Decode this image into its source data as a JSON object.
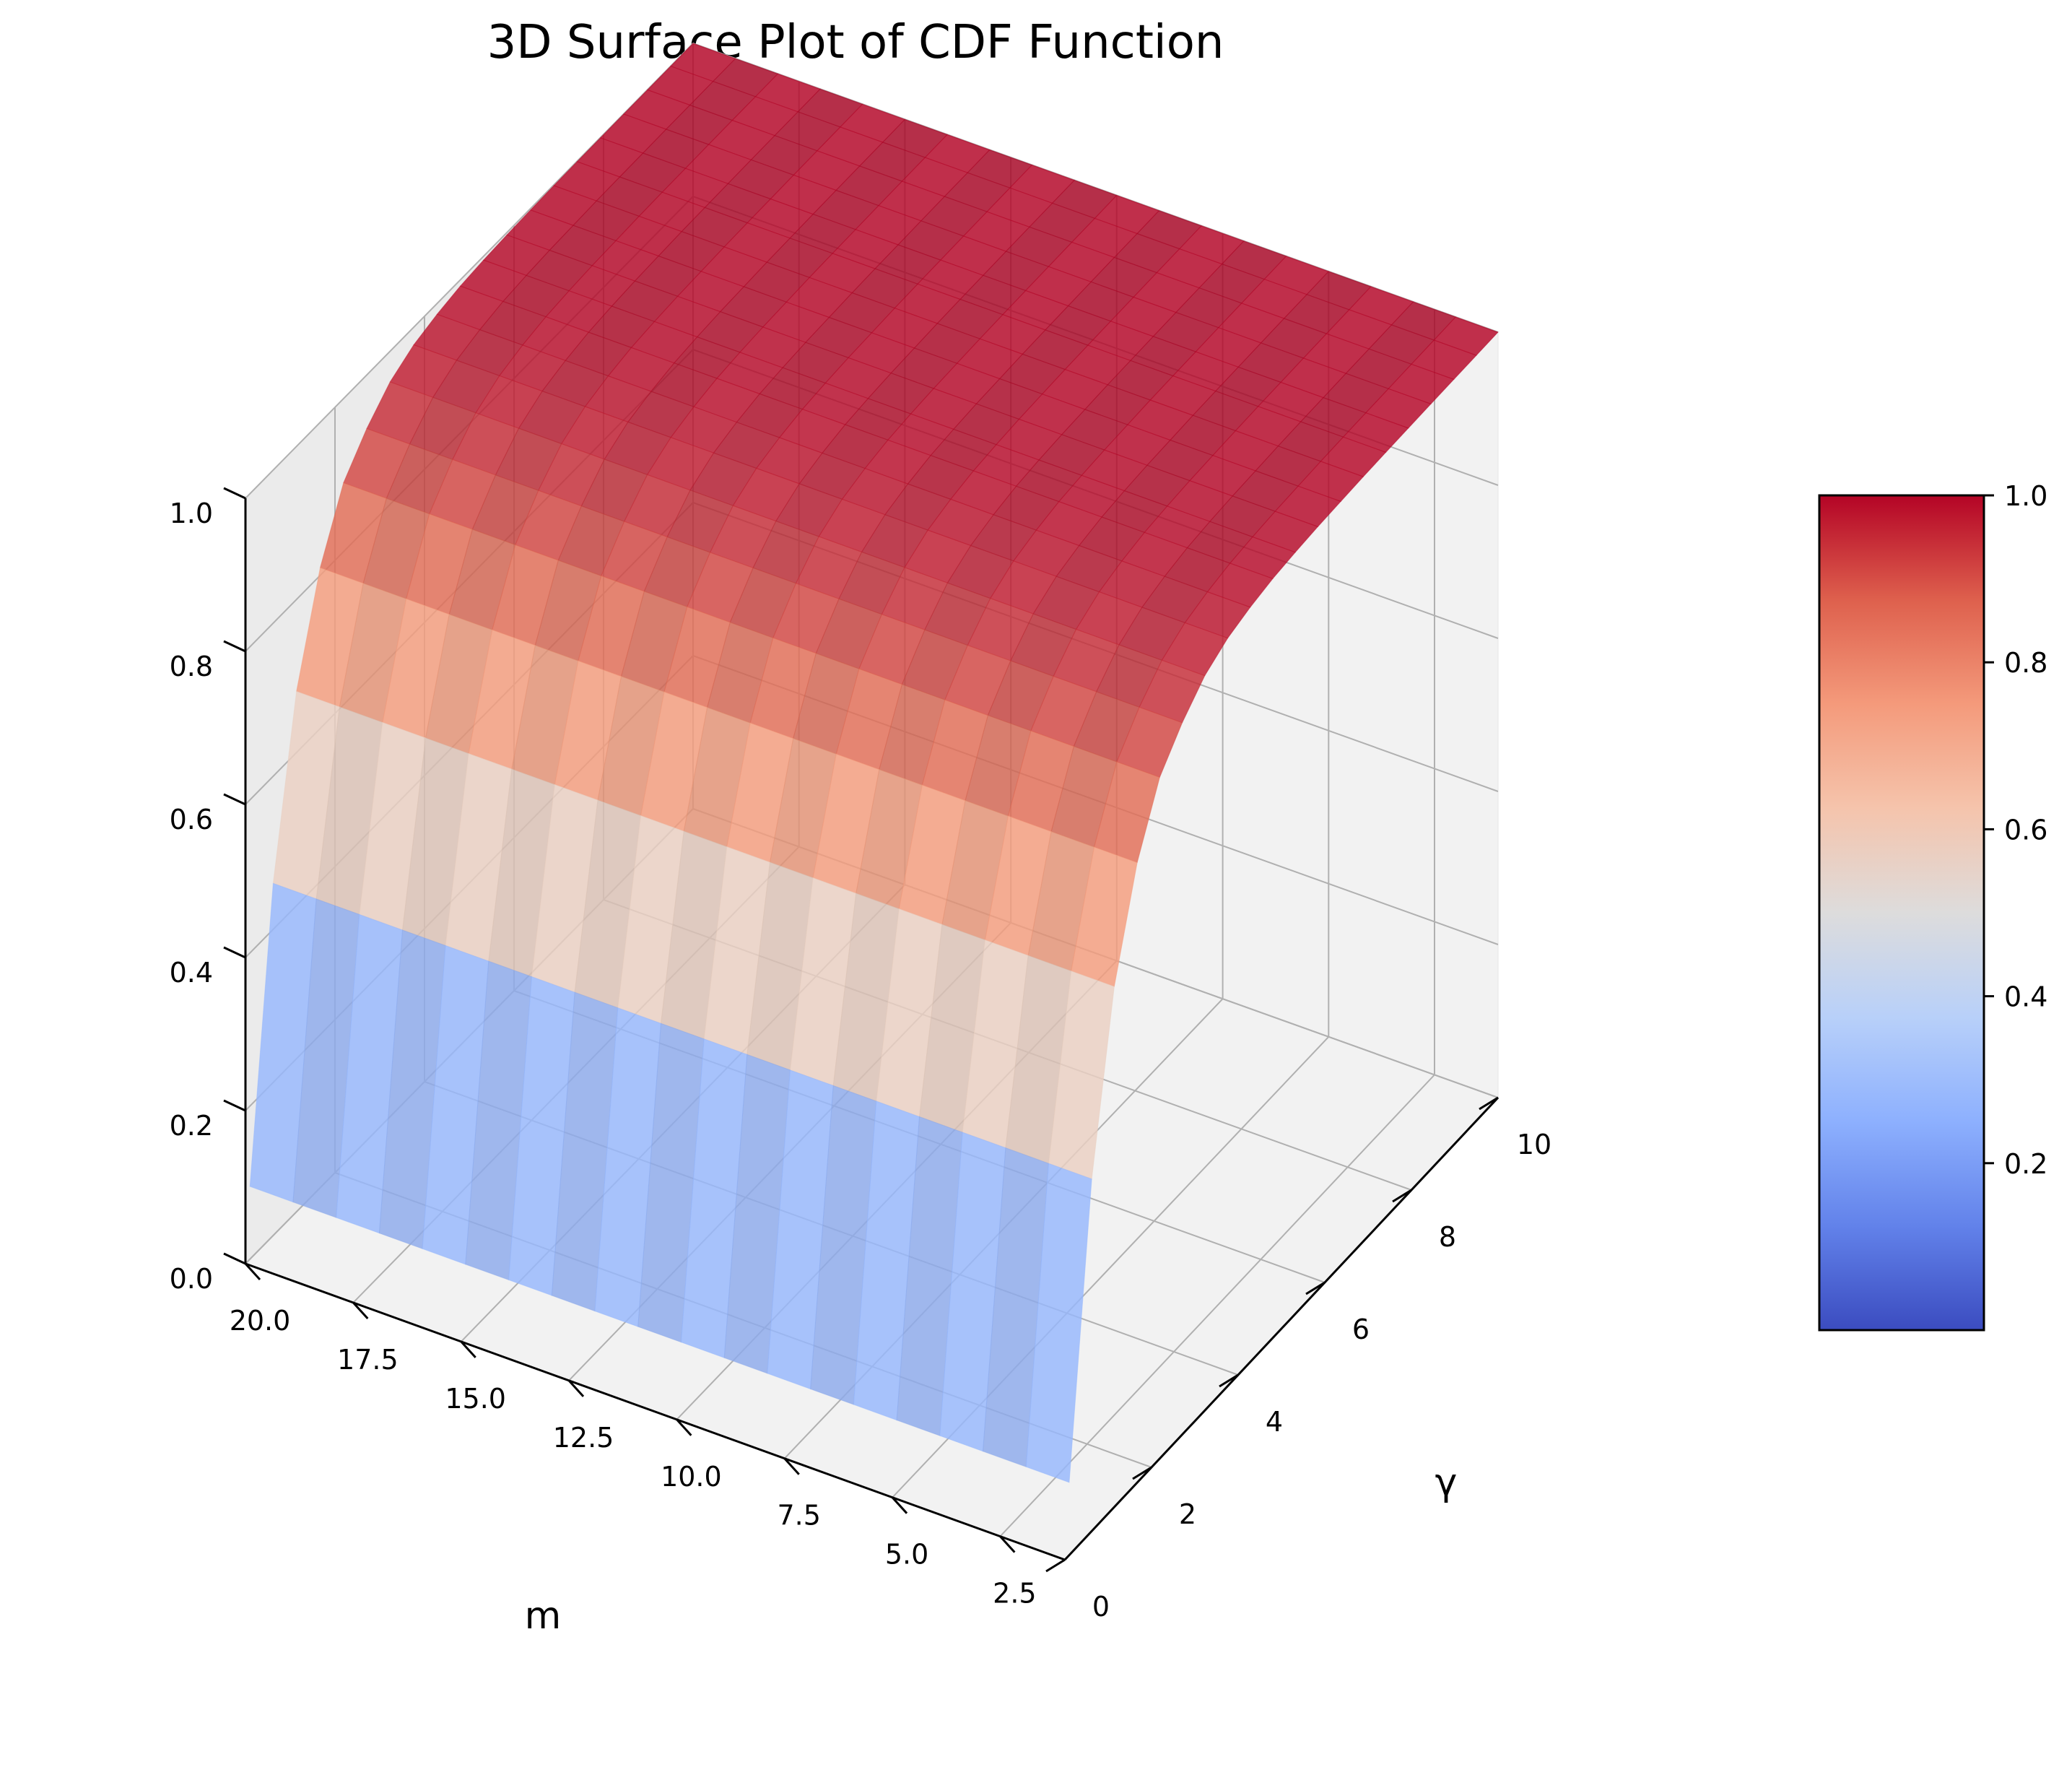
{
  "chart_data": {
    "type": "surface",
    "title": "3D Surface Plot of CDF Function",
    "xlabel": "m",
    "ylabel": "γ",
    "zlabel": "",
    "x": [
      1,
      2,
      3,
      4,
      5,
      6,
      7,
      8,
      9,
      10,
      11,
      12,
      13,
      14,
      15,
      16,
      17,
      18,
      19,
      20
    ],
    "y": [
      0.1,
      0.62,
      1.14,
      1.67,
      2.19,
      2.71,
      3.23,
      3.76,
      4.28,
      4.8,
      5.32,
      5.84,
      6.37,
      6.89,
      7.41,
      7.93,
      8.45,
      8.98,
      9.5,
      10.0
    ],
    "function": "z = 1 - exp(-y)",
    "z_rows_by_y": [
      0.095,
      0.46,
      0.68,
      0.81,
      0.89,
      0.93,
      0.96,
      0.977,
      0.986,
      0.992,
      0.995,
      0.997,
      0.998,
      0.999,
      0.9994,
      0.9996,
      0.9998,
      0.9999,
      0.9999,
      1.0
    ],
    "xlim": [
      1,
      20
    ],
    "ylim": [
      0,
      10
    ],
    "zlim": [
      0.0,
      1.0
    ],
    "xticks": [
      "2.5",
      "5.0",
      "7.5",
      "10.0",
      "12.5",
      "15.0",
      "17.5",
      "20.0"
    ],
    "yticks": [
      "0",
      "2",
      "4",
      "6",
      "8",
      "10"
    ],
    "zticks": [
      "0.0",
      "0.2",
      "0.4",
      "0.6",
      "0.8",
      "1.0"
    ],
    "colormap": "coolwarm",
    "colorbar": {
      "ticks": [
        "0.2",
        "0.4",
        "0.6",
        "0.8",
        "1.0"
      ],
      "range": [
        0.0,
        1.0
      ]
    },
    "grid": true
  }
}
